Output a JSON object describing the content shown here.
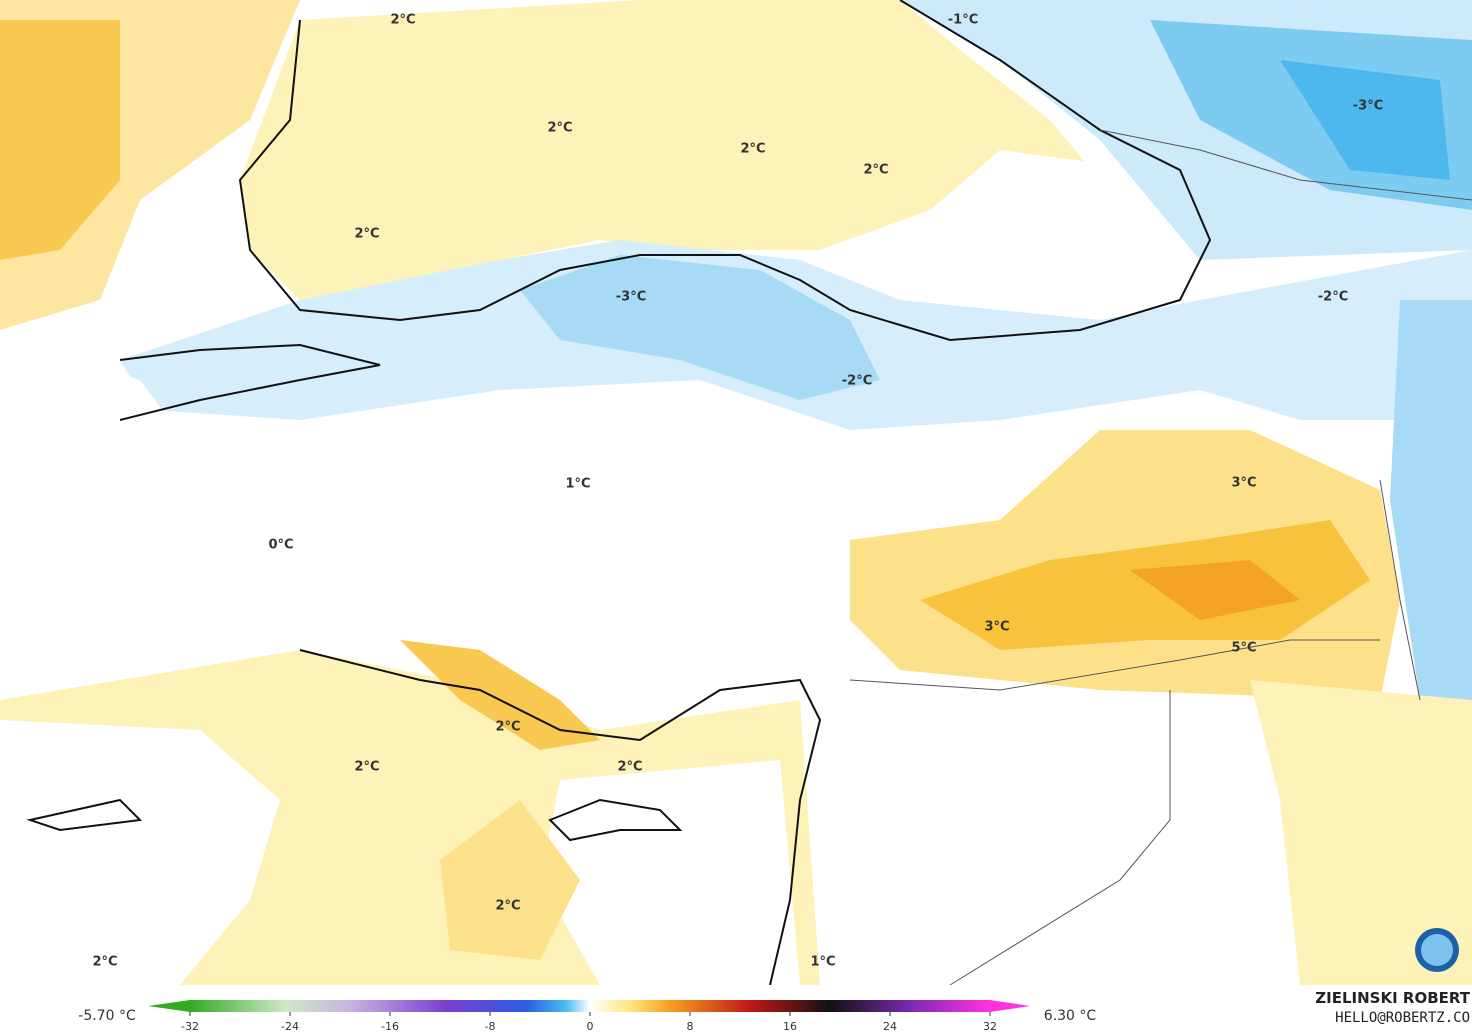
{
  "map": {
    "labels": [
      "2°C",
      "-1°C",
      "2°C",
      "2°C",
      "2°C",
      "-3°C",
      "2°C",
      "-3°C",
      "-2°C",
      "-2°C",
      "1°C",
      "3°C",
      "0°C",
      "3°C",
      "5°C",
      "2°C",
      "2°C",
      "2°C",
      "2°C",
      "2°C",
      "1°C"
    ],
    "colorbar": {
      "min_label": "-5.70 °C",
      "max_label": "6.30 °C",
      "ticks": [
        -32,
        -24,
        -16,
        -8,
        0,
        8,
        16,
        24,
        32
      ]
    },
    "credit": {
      "author": "ZIELINSKI ROBERT",
      "email": "HELLO@ROBERTZ.CO"
    }
  }
}
